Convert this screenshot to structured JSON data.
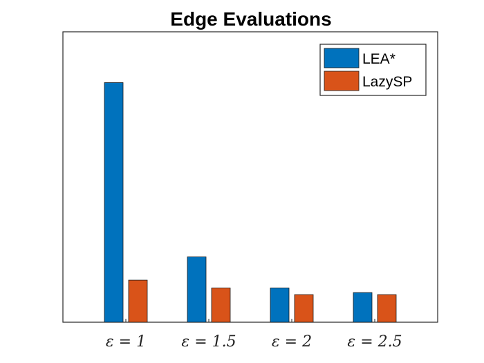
{
  "chart_data": {
    "type": "bar",
    "title": "Edge Evaluations",
    "xlabel": "",
    "ylabel": "",
    "categories": [
      "ε = 1",
      "ε = 1.5",
      "ε = 2",
      "ε = 2.5"
    ],
    "series": [
      {
        "name": "LEA*",
        "color": "#0072BD",
        "values": [
          0.825,
          0.225,
          0.118,
          0.102
        ]
      },
      {
        "name": "LazySP",
        "color": "#D95319",
        "values": [
          0.145,
          0.118,
          0.095,
          0.095
        ]
      }
    ],
    "ylim": [
      0,
      1
    ],
    "legend": "top-right",
    "grid": false,
    "yticks_visible": false
  }
}
